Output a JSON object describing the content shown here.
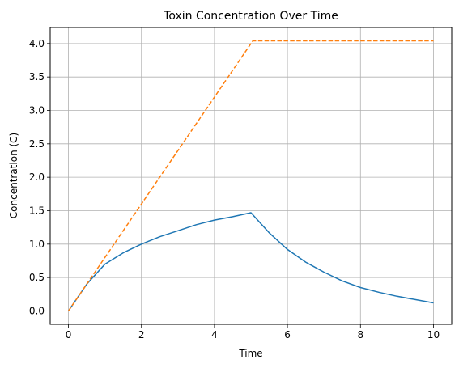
{
  "chart_data": {
    "type": "line",
    "title": "Toxin Concentration Over Time",
    "xlabel": "Time",
    "ylabel": "Concentration (C)",
    "xlim": [
      -0.5,
      10.5
    ],
    "ylim": [
      -0.2,
      4.24
    ],
    "xticks": [
      0,
      2,
      4,
      6,
      8,
      10
    ],
    "yticks": [
      0.0,
      0.5,
      1.0,
      1.5,
      2.0,
      2.5,
      3.0,
      3.5,
      4.0
    ],
    "xtick_labels": [
      "0",
      "2",
      "4",
      "6",
      "8",
      "10"
    ],
    "ytick_labels": [
      "0.0",
      "0.5",
      "1.0",
      "1.5",
      "2.0",
      "2.5",
      "3.0",
      "3.5",
      "4.0"
    ],
    "grid": true,
    "series": [
      {
        "color": "#1f77b4",
        "style": "solid",
        "x": [
          0,
          0.5,
          1,
          1.5,
          2,
          2.5,
          3,
          3.5,
          4,
          4.5,
          5,
          5.5,
          6,
          6.5,
          7,
          7.5,
          8,
          8.5,
          9,
          9.5,
          10
        ],
        "y": [
          0.0,
          0.4,
          0.7,
          0.87,
          1.0,
          1.11,
          1.2,
          1.29,
          1.36,
          1.41,
          1.47,
          1.17,
          0.92,
          0.73,
          0.58,
          0.45,
          0.35,
          0.28,
          0.22,
          0.17,
          0.12
        ]
      },
      {
        "color": "#ff7f0e",
        "style": "dashed",
        "x": [
          0,
          5.05,
          10
        ],
        "y": [
          0.0,
          4.04,
          4.04
        ]
      }
    ]
  }
}
